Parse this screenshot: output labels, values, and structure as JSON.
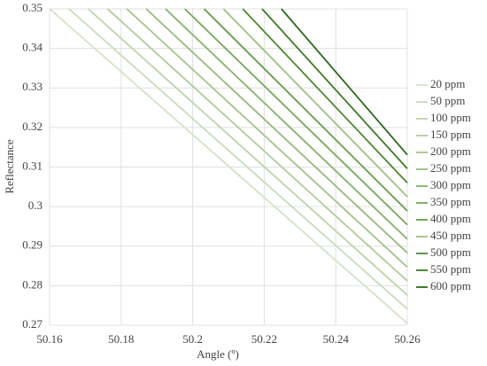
{
  "chart_data": {
    "type": "line",
    "x_label": "Angle (º)",
    "y_label": "Reflectance",
    "xlim": [
      50.16,
      50.26
    ],
    "xticks": [
      50.16,
      50.18,
      50.2,
      50.22,
      50.24,
      50.26
    ],
    "ylim": [
      0.27,
      0.35
    ],
    "yticks": [
      0.27,
      0.28,
      0.29,
      0.3,
      0.31,
      0.32,
      0.33,
      0.34,
      0.35
    ],
    "grid": true,
    "legend": "right",
    "series": [
      {
        "name": "20 ppm",
        "color": "#d3e3c7",
        "x": [
          50.16,
          50.26
        ],
        "values": [
          0.35,
          0.2705
        ]
      },
      {
        "name": "50 ppm",
        "color": "#c7dcb8",
        "x": [
          50.1654,
          50.26
        ],
        "values": [
          0.35,
          0.2741
        ]
      },
      {
        "name": "100 ppm",
        "color": "#bbd4a9",
        "x": [
          50.1708,
          50.26
        ],
        "values": [
          0.35,
          0.2776
        ]
      },
      {
        "name": "150 ppm",
        "color": "#aecc9a",
        "x": [
          50.1762,
          50.26
        ],
        "values": [
          0.35,
          0.2812
        ]
      },
      {
        "name": "200 ppm",
        "color": "#a1c48a",
        "x": [
          50.1816,
          50.26
        ],
        "values": [
          0.35,
          0.2847
        ]
      },
      {
        "name": "250 ppm",
        "color": "#93bb7a",
        "x": [
          50.187,
          50.26
        ],
        "values": [
          0.35,
          0.2883
        ]
      },
      {
        "name": "300 ppm",
        "color": "#84b269",
        "x": [
          50.1924,
          50.26
        ],
        "values": [
          0.35,
          0.2918
        ]
      },
      {
        "name": "350 ppm",
        "color": "#74a858",
        "x": [
          50.1978,
          50.26
        ],
        "values": [
          0.35,
          0.2954
        ]
      },
      {
        "name": "400 ppm",
        "color": "#649d47",
        "x": [
          50.2032,
          50.26
        ],
        "values": [
          0.35,
          0.2989
        ]
      },
      {
        "name": "450 ppm",
        "color": "#9cc185",
        "x": [
          50.2086,
          50.26
        ],
        "values": [
          0.35,
          0.3025
        ]
      },
      {
        "name": "500 ppm",
        "color": "#4e8a30",
        "x": [
          50.214,
          50.26
        ],
        "values": [
          0.35,
          0.306
        ]
      },
      {
        "name": "550 ppm",
        "color": "#3d7a25",
        "x": [
          50.2194,
          50.26
        ],
        "values": [
          0.35,
          0.3096
        ]
      },
      {
        "name": "600 ppm",
        "color": "#2c6a1a",
        "x": [
          50.2248,
          50.26
        ],
        "values": [
          0.35,
          0.3131
        ]
      }
    ]
  }
}
